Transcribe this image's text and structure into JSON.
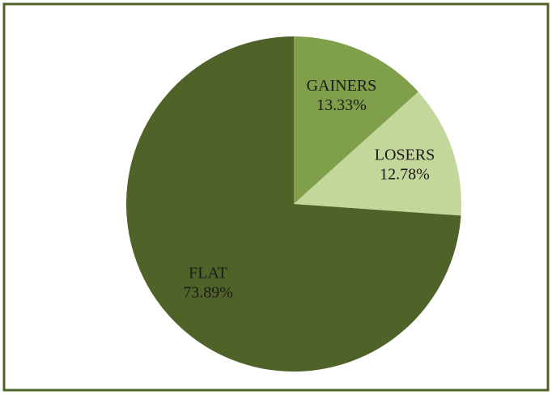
{
  "chart_data": {
    "type": "pie",
    "categories": [
      "GAINERS",
      "LOSERS",
      "FLAT"
    ],
    "values": [
      13.33,
      12.78,
      73.89
    ],
    "value_labels": [
      "13.33%",
      "12.78%",
      "73.89%"
    ],
    "colors": [
      "#7f9f4a",
      "#c4d79b",
      "#4f6228"
    ]
  }
}
